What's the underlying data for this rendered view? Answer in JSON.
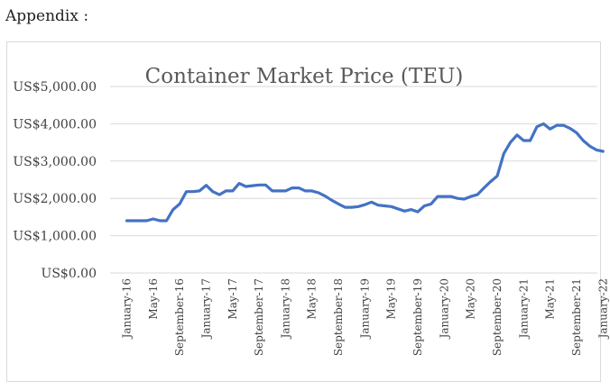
{
  "page": {
    "heading": "Appendix :"
  },
  "chart_data": {
    "type": "line",
    "title": "Container Market Price (TEU)",
    "xlabel": "",
    "ylabel": "",
    "ylim": [
      0,
      5000
    ],
    "y_ticks": [
      0,
      1000,
      2000,
      3000,
      4000,
      5000
    ],
    "y_tick_labels": [
      "US$0.00",
      "US$1,000.00",
      "US$2,000.00",
      "US$3,000.00",
      "US$4,000.00",
      "US$5,000.00"
    ],
    "x_tick_labels": [
      {
        "index": 0,
        "label": "January-16"
      },
      {
        "index": 4,
        "label": "May-16"
      },
      {
        "index": 8,
        "label": "September-16"
      },
      {
        "index": 12,
        "label": "January-17"
      },
      {
        "index": 16,
        "label": "May-17"
      },
      {
        "index": 20,
        "label": "September-17"
      },
      {
        "index": 24,
        "label": "January-18"
      },
      {
        "index": 28,
        "label": "May-18"
      },
      {
        "index": 32,
        "label": "September-18"
      },
      {
        "index": 36,
        "label": "January-19"
      },
      {
        "index": 40,
        "label": "May-19"
      },
      {
        "index": 44,
        "label": "September-19"
      },
      {
        "index": 48,
        "label": "January-20"
      },
      {
        "index": 52,
        "label": "May-20"
      },
      {
        "index": 56,
        "label": "September-20"
      },
      {
        "index": 60,
        "label": "January-21"
      },
      {
        "index": 64,
        "label": "May-21"
      },
      {
        "index": 68,
        "label": "September-21"
      },
      {
        "index": 72,
        "label": "January-22"
      }
    ],
    "grid": true,
    "legend": "none",
    "line_color": "#4472c4",
    "grid_color": "#d9d9d9",
    "series": [
      {
        "x_start": "January-16",
        "frequency": "monthly",
        "values": [
          1400,
          1400,
          1400,
          1400,
          1450,
          1400,
          1400,
          1700,
          1850,
          2180,
          2180,
          2200,
          2350,
          2180,
          2100,
          2200,
          2200,
          2400,
          2320,
          2340,
          2360,
          2360,
          2200,
          2200,
          2200,
          2280,
          2280,
          2200,
          2200,
          2150,
          2060,
          1950,
          1850,
          1760,
          1760,
          1780,
          1830,
          1900,
          1820,
          1800,
          1780,
          1720,
          1660,
          1700,
          1640,
          1800,
          1850,
          2050,
          2050,
          2050,
          2000,
          1980,
          2050,
          2100,
          2280,
          2450,
          2600,
          3200,
          3500,
          3700,
          3550,
          3550,
          3920,
          4000,
          3860,
          3960,
          3960,
          3880,
          3760,
          3550,
          3400,
          3300,
          3260
        ]
      }
    ]
  }
}
